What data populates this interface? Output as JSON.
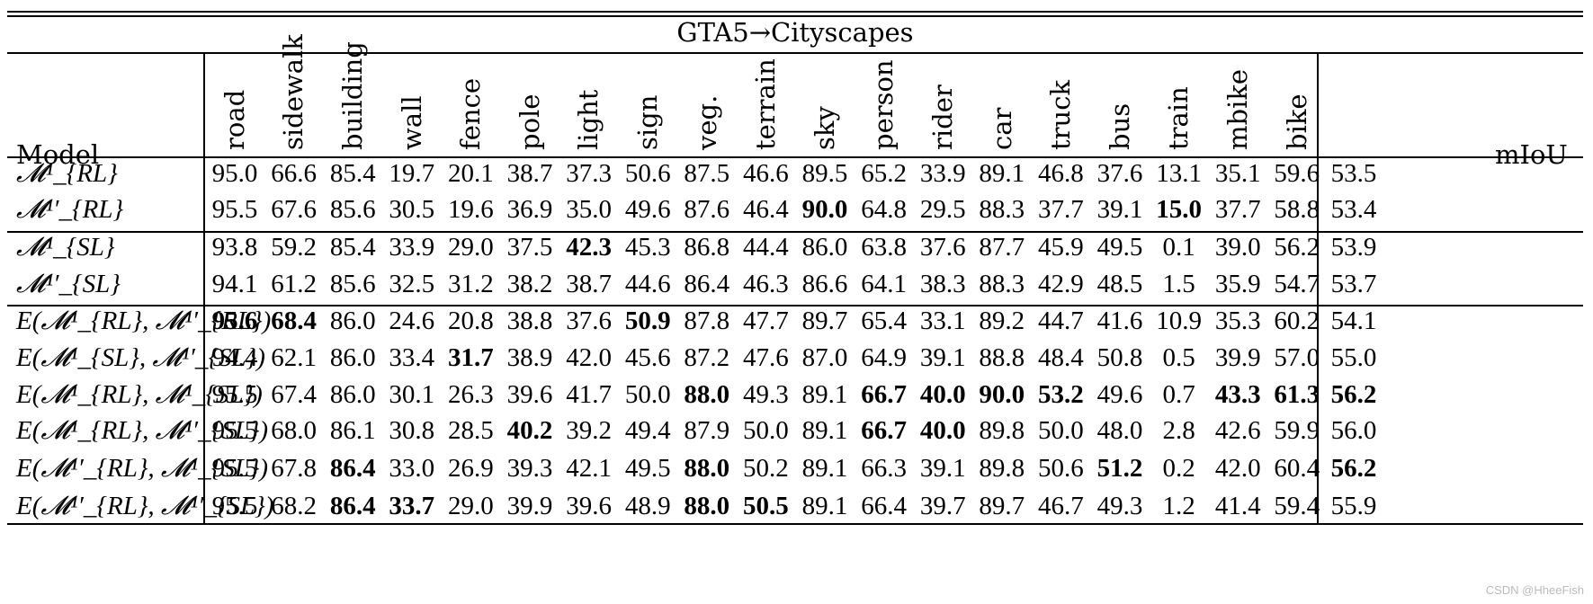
{
  "title": "GTA5→Cityscapes",
  "model_header": "Model",
  "miou_header": "mIoU",
  "classes": [
    "road",
    "sidewalk",
    "building",
    "wall",
    "fence",
    "pole",
    "light",
    "sign",
    "veg.",
    "terrain",
    "sky",
    "person",
    "rider",
    "car",
    "truck",
    "bus",
    "train",
    "mbike",
    "bike"
  ],
  "rows": [
    {
      "model": "𝓜¹_{RL}",
      "values": [
        "95.0",
        "66.6",
        "85.4",
        "19.7",
        "20.1",
        "38.7",
        "37.3",
        "50.6",
        "87.5",
        "46.6",
        "89.5",
        "65.2",
        "33.9",
        "89.1",
        "46.8",
        "37.6",
        "13.1",
        "35.1",
        "59.6"
      ],
      "miou": "53.5",
      "bold": []
    },
    {
      "model": "𝓜¹′_{RL}",
      "values": [
        "95.5",
        "67.6",
        "85.6",
        "30.5",
        "19.6",
        "36.9",
        "35.0",
        "49.6",
        "87.6",
        "46.4",
        "90.0",
        "64.8",
        "29.5",
        "88.3",
        "37.7",
        "39.1",
        "15.0",
        "37.7",
        "58.8"
      ],
      "miou": "53.4",
      "bold": [
        10,
        16
      ]
    },
    {
      "model": "𝓜¹_{SL}",
      "values": [
        "93.8",
        "59.2",
        "85.4",
        "33.9",
        "29.0",
        "37.5",
        "42.3",
        "45.3",
        "86.8",
        "44.4",
        "86.0",
        "63.8",
        "37.6",
        "87.7",
        "45.9",
        "49.5",
        "0.1",
        "39.0",
        "56.2"
      ],
      "miou": "53.9",
      "bold": [
        6
      ]
    },
    {
      "model": "𝓜¹′_{SL}",
      "values": [
        "94.1",
        "61.2",
        "85.6",
        "32.5",
        "31.2",
        "38.2",
        "38.7",
        "44.6",
        "86.4",
        "46.3",
        "86.6",
        "64.1",
        "38.3",
        "88.3",
        "42.9",
        "48.5",
        "1.5",
        "35.9",
        "54.7"
      ],
      "miou": "53.7",
      "bold": []
    },
    {
      "model": "E(𝓜¹_{RL}, 𝓜¹′_{RL})",
      "values": [
        "95.6",
        "68.4",
        "86.0",
        "24.6",
        "20.8",
        "38.8",
        "37.6",
        "50.9",
        "87.8",
        "47.7",
        "89.7",
        "65.4",
        "33.1",
        "89.2",
        "44.7",
        "41.6",
        "10.9",
        "35.3",
        "60.2"
      ],
      "miou": "54.1",
      "bold": [
        0,
        1,
        7
      ]
    },
    {
      "model": "E(𝓜¹_{SL}, 𝓜¹′_{SL})",
      "values": [
        "94.4",
        "62.1",
        "86.0",
        "33.4",
        "31.7",
        "38.9",
        "42.0",
        "45.6",
        "87.2",
        "47.6",
        "87.0",
        "64.9",
        "39.1",
        "88.8",
        "48.4",
        "50.8",
        "0.5",
        "39.9",
        "57.0"
      ],
      "miou": "55.0",
      "bold": [
        4
      ]
    },
    {
      "model": "E(𝓜¹_{RL}, 𝓜¹_{SL})",
      "values": [
        "95.5",
        "67.4",
        "86.0",
        "30.1",
        "26.3",
        "39.6",
        "41.7",
        "50.0",
        "88.0",
        "49.3",
        "89.1",
        "66.7",
        "40.0",
        "90.0",
        "53.2",
        "49.6",
        "0.7",
        "43.3",
        "61.3"
      ],
      "miou": "56.2",
      "bold": [
        8,
        11,
        12,
        13,
        14,
        17,
        18,
        19
      ]
    },
    {
      "model": "E(𝓜¹_{RL}, 𝓜¹′_{SL})",
      "values": [
        "95.5",
        "68.0",
        "86.1",
        "30.8",
        "28.5",
        "40.2",
        "39.2",
        "49.4",
        "87.9",
        "50.0",
        "89.1",
        "66.7",
        "40.0",
        "89.8",
        "50.0",
        "48.0",
        "2.8",
        "42.6",
        "59.9"
      ],
      "miou": "56.0",
      "bold": [
        5,
        11,
        12
      ]
    },
    {
      "model": "E(𝓜¹′_{RL}, 𝓜¹_{SL})",
      "values": [
        "95.5",
        "67.8",
        "86.4",
        "33.0",
        "26.9",
        "39.3",
        "42.1",
        "49.5",
        "88.0",
        "50.2",
        "89.1",
        "66.3",
        "39.1",
        "89.8",
        "50.6",
        "51.2",
        "0.2",
        "42.0",
        "60.4"
      ],
      "miou": "56.2",
      "bold": [
        2,
        8,
        15,
        19
      ]
    },
    {
      "model": "E(𝓜¹′_{RL}, 𝓜¹′_{SL})",
      "values": [
        "95.5",
        "68.2",
        "86.4",
        "33.7",
        "29.0",
        "39.9",
        "39.6",
        "48.9",
        "88.0",
        "50.5",
        "89.1",
        "66.4",
        "39.7",
        "89.7",
        "46.7",
        "49.3",
        "1.2",
        "41.4",
        "59.4"
      ],
      "miou": "55.9",
      "bold": [
        2,
        3,
        8,
        9
      ]
    }
  ],
  "watermark": "CSDN @HheeFish"
}
